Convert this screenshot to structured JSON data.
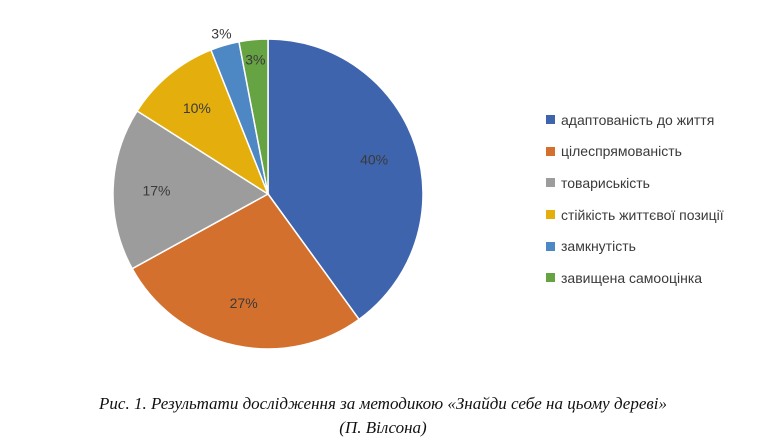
{
  "chart_data": {
    "type": "pie",
    "categories": [
      "адаптованість до життя",
      "цілеспрямованість",
      "товариськість",
      "стійкість життєвої позиції",
      "замкнутість",
      "завищена самооцінка"
    ],
    "values": [
      40,
      27,
      17,
      10,
      3,
      3
    ],
    "data_labels": [
      "40%",
      "27%",
      "17%",
      "10%",
      "3%",
      "3%"
    ],
    "colors": [
      "#3E64AE",
      "#D4702E",
      "#9C9C9C",
      "#E4AE0C",
      "#4E88C4",
      "#66A343"
    ],
    "legend_position": "right"
  },
  "caption": {
    "line1": "Рис. 1. Результати дослідження за методикою «Знайди себе на цьому дереві»",
    "line2": "(П. Вілсона)"
  }
}
